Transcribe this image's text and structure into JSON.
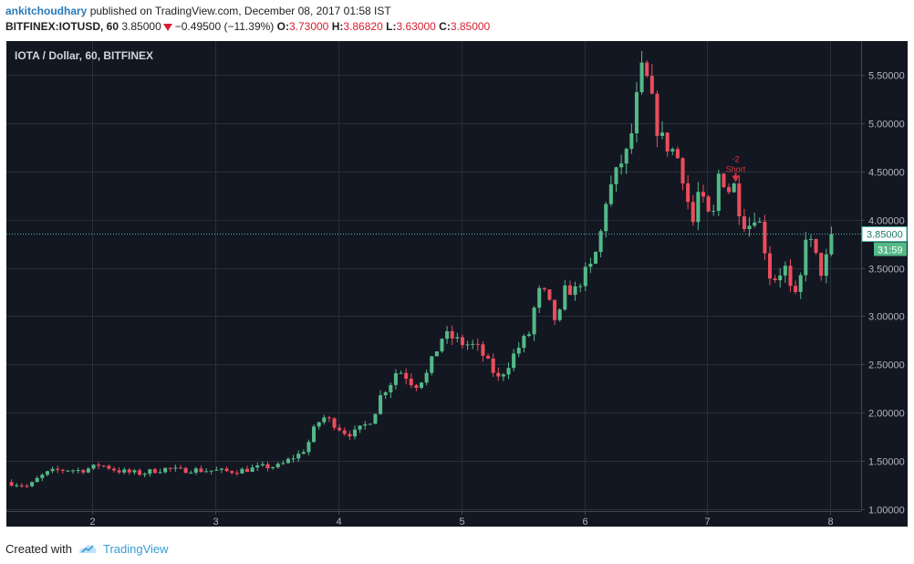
{
  "header": {
    "user": "ankitchoudhary",
    "published_text": "published on TradingView.com, December 08, 2017 01:58 IST",
    "symbol_interval": "BITFINEX:IOTUSD, 60",
    "last": "3.85000",
    "change": "−0.49500 (−11.39%)",
    "o_label": "O:",
    "o_value": "3.73000",
    "h_label": "H:",
    "h_value": "3.86820",
    "l_label": "L:",
    "l_value": "3.63000",
    "c_label": "C:",
    "c_value": "3.85000"
  },
  "colors": {
    "background": "#131722",
    "grid": "#2a2e39",
    "up": "#53b987",
    "down": "#eb4d5c",
    "last_price_line": "#4fb5a5",
    "axis_text": "#b2b5be"
  },
  "chart_data": {
    "type": "candlestick",
    "title": "IOTA / Dollar, 60, BITFINEX",
    "x_ticks": [
      "2",
      "3",
      "4",
      "5",
      "6",
      "7",
      "8"
    ],
    "x_range": [
      1.3,
      8.25
    ],
    "y_ticks": [
      "1.00000",
      "1.50000",
      "2.00000",
      "2.50000",
      "3.00000",
      "3.50000",
      "4.00000",
      "4.50000",
      "5.00000",
      "5.50000"
    ],
    "ylim": [
      0.98,
      5.85
    ],
    "grid": true,
    "last_price": 3.85,
    "last_price_label": "3.85000",
    "countdown_label": "31:59",
    "annotation": {
      "line1": "-2",
      "line2": "Short",
      "x": 7.23,
      "y": 4.37
    },
    "path": [
      [
        1.3,
        1.28
      ],
      [
        1.4,
        1.26
      ],
      [
        1.48,
        1.23
      ],
      [
        1.55,
        1.31
      ],
      [
        1.62,
        1.37
      ],
      [
        1.7,
        1.4
      ],
      [
        1.8,
        1.41
      ],
      [
        1.9,
        1.4
      ],
      [
        2.0,
        1.43
      ],
      [
        2.05,
        1.46
      ],
      [
        2.12,
        1.44
      ],
      [
        2.2,
        1.4
      ],
      [
        2.3,
        1.38
      ],
      [
        2.4,
        1.37
      ],
      [
        2.5,
        1.4
      ],
      [
        2.6,
        1.42
      ],
      [
        2.7,
        1.4
      ],
      [
        2.8,
        1.41
      ],
      [
        2.9,
        1.4
      ],
      [
        3.0,
        1.4
      ],
      [
        3.1,
        1.39
      ],
      [
        3.2,
        1.4
      ],
      [
        3.3,
        1.42
      ],
      [
        3.4,
        1.44
      ],
      [
        3.5,
        1.44
      ],
      [
        3.55,
        1.47
      ],
      [
        3.62,
        1.53
      ],
      [
        3.7,
        1.58
      ],
      [
        3.76,
        1.7
      ],
      [
        3.82,
        1.88
      ],
      [
        3.88,
        1.95
      ],
      [
        3.95,
        1.9
      ],
      [
        4.05,
        1.8
      ],
      [
        4.12,
        1.78
      ],
      [
        4.2,
        1.85
      ],
      [
        4.28,
        1.95
      ],
      [
        4.35,
        2.2
      ],
      [
        4.42,
        2.3
      ],
      [
        4.48,
        2.45
      ],
      [
        4.55,
        2.38
      ],
      [
        4.62,
        2.28
      ],
      [
        4.72,
        2.4
      ],
      [
        4.78,
        2.6
      ],
      [
        4.85,
        2.8
      ],
      [
        4.92,
        2.78
      ],
      [
        5.0,
        2.72
      ],
      [
        5.08,
        2.7
      ],
      [
        5.15,
        2.65
      ],
      [
        5.22,
        2.5
      ],
      [
        5.3,
        2.35
      ],
      [
        5.38,
        2.5
      ],
      [
        5.45,
        2.65
      ],
      [
        5.55,
        2.82
      ],
      [
        5.62,
        3.25
      ],
      [
        5.68,
        3.22
      ],
      [
        5.72,
        3.1
      ],
      [
        5.78,
        2.9
      ],
      [
        5.85,
        3.3
      ],
      [
        5.92,
        3.25
      ],
      [
        5.98,
        3.4
      ],
      [
        6.05,
        3.5
      ],
      [
        6.12,
        3.75
      ],
      [
        6.18,
        4.25
      ],
      [
        6.24,
        4.4
      ],
      [
        6.3,
        4.6
      ],
      [
        6.36,
        4.7
      ],
      [
        6.42,
        5.2
      ],
      [
        6.47,
        5.55
      ],
      [
        6.52,
        5.4
      ],
      [
        6.58,
        5.0
      ],
      [
        6.64,
        4.8
      ],
      [
        6.7,
        4.75
      ],
      [
        6.78,
        4.6
      ],
      [
        6.84,
        4.2
      ],
      [
        6.88,
        3.95
      ],
      [
        6.93,
        4.3
      ],
      [
        6.98,
        4.1
      ],
      [
        7.04,
        3.95
      ],
      [
        7.1,
        4.55
      ],
      [
        7.16,
        4.3
      ],
      [
        7.22,
        4.35
      ],
      [
        7.28,
        4.0
      ],
      [
        7.34,
        3.95
      ],
      [
        7.4,
        4.1
      ],
      [
        7.46,
        3.75
      ],
      [
        7.52,
        3.35
      ],
      [
        7.58,
        3.45
      ],
      [
        7.64,
        3.5
      ],
      [
        7.7,
        3.1
      ],
      [
        7.76,
        3.4
      ],
      [
        7.8,
        3.85
      ],
      [
        7.86,
        3.7
      ],
      [
        7.92,
        3.45
      ],
      [
        7.97,
        3.6
      ],
      [
        8.02,
        3.85
      ]
    ]
  },
  "footer": {
    "created_with": "Created with",
    "brand": "TradingView"
  }
}
